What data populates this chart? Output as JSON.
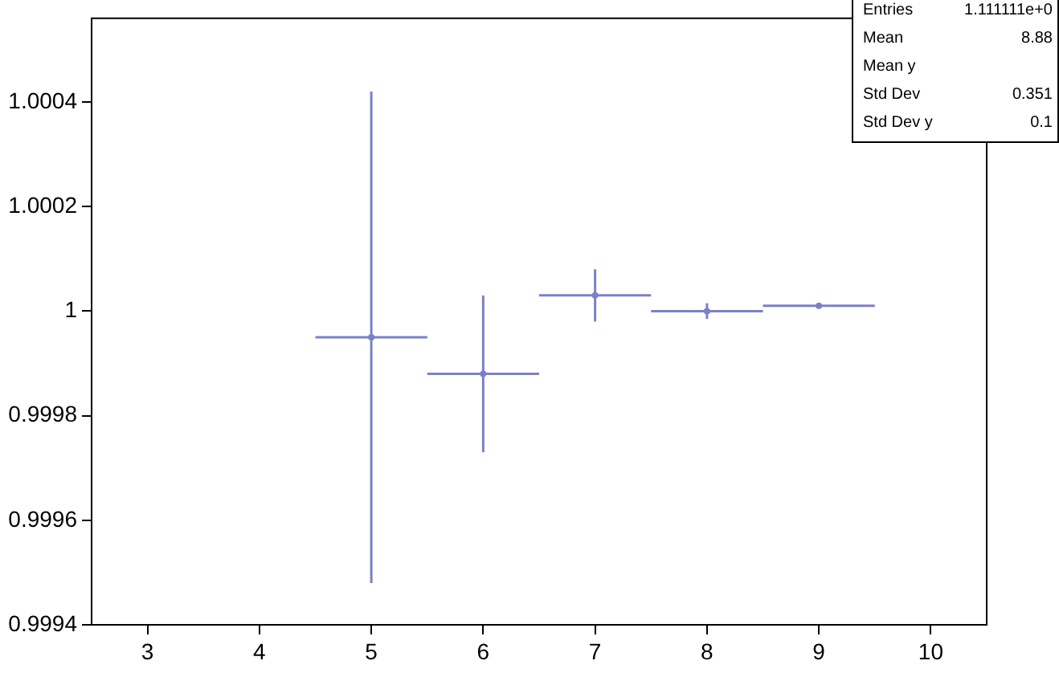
{
  "chart_data": {
    "type": "scatter",
    "x": [
      5,
      6,
      7,
      8,
      9
    ],
    "series": [
      {
        "color": "#7b80c8",
        "values": [
          0.99995,
          0.99988,
          1.00003,
          1.0,
          1.00001
        ],
        "errors": [
          0.00047,
          0.00015,
          5e-05,
          1.5e-05,
          5e-06
        ],
        "xerrors": [
          0.5,
          0.5,
          0.5,
          0.5,
          0.5
        ]
      }
    ],
    "xlim": [
      2.5,
      10.5
    ],
    "xticks": [
      3,
      4,
      5,
      6,
      7,
      8,
      9,
      10
    ],
    "ylim": [
      0.9994,
      1.00056
    ],
    "yticks": [
      0.9994,
      0.9996,
      0.9998,
      1,
      1.0002,
      1.0004
    ],
    "marker": "circle",
    "grid": false,
    "legend": false,
    "annotations": [
      "Entries",
      "1.111111e+0",
      "Mean",
      "8.88",
      "Mean y",
      "Std Dev",
      "0.351",
      "Std Dev y",
      "0.1"
    ]
  }
}
